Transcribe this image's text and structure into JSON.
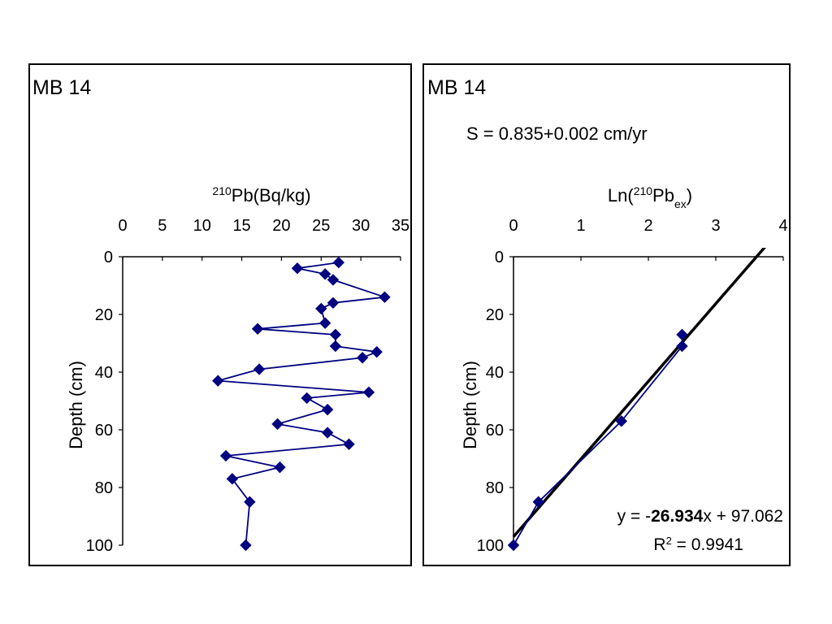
{
  "chart_data": [
    {
      "type": "line",
      "title": "MB 14",
      "xlabel": {
        "sup": "210",
        "main": "Pb(Bq/kg)"
      },
      "ylabel": "Depth (cm)",
      "xlim": [
        0,
        35
      ],
      "ylim": [
        0,
        100
      ],
      "y_inverted": true,
      "x_axis_position": "top",
      "xticks": [
        "0",
        "5",
        "10",
        "15",
        "20",
        "25",
        "30",
        "35"
      ],
      "yticks": [
        "0",
        "20",
        "40",
        "60",
        "80",
        "100"
      ],
      "marker": "diamond",
      "color": "#000080",
      "series": [
        {
          "x": [
            27.2,
            22.0,
            25.5,
            26.5,
            33.0,
            26.5,
            25.0,
            25.5,
            17.0,
            26.8,
            26.8,
            32.0,
            30.2,
            17.2,
            12.0,
            31.0,
            23.2,
            25.8,
            19.5,
            25.8,
            28.5,
            13.0,
            19.8,
            13.8,
            16.0,
            15.5
          ],
          "y": [
            2,
            4,
            6,
            8,
            14,
            16,
            18,
            23,
            25,
            27,
            31,
            33,
            35,
            39,
            43,
            47,
            49,
            53,
            58,
            61,
            65,
            69,
            73,
            77,
            85,
            100
          ]
        }
      ]
    },
    {
      "type": "scatter",
      "title": "MB 14",
      "annotation": "S = 0.835+0.002 cm/yr",
      "xlabel": {
        "pre": "Ln(",
        "sup": "210",
        "main": "Pb",
        "sub": "ex",
        "post": ")"
      },
      "ylabel": "Depth (cm)",
      "xlim": [
        0,
        4
      ],
      "ylim": [
        0,
        100
      ],
      "y_inverted": true,
      "x_axis_position": "top",
      "xticks": [
        "0",
        "1",
        "2",
        "3",
        "4"
      ],
      "yticks": [
        "0",
        "20",
        "40",
        "60",
        "80",
        "100"
      ],
      "marker": "diamond",
      "color": "#000080",
      "series": [
        {
          "x": [
            2.5,
            2.5,
            1.6,
            0.37,
            0.0
          ],
          "y": [
            27,
            31,
            57,
            85,
            100
          ]
        }
      ],
      "trendline": {
        "slope": -26.934,
        "intercept": 97.062,
        "r2": 0.9941,
        "equation": {
          "pre": "y = -",
          "slope": "26.934",
          "post": "x + 97.062"
        },
        "r2_label": {
          "pre": "R",
          "sup": "2",
          "post": " = 0.9941"
        }
      }
    }
  ]
}
